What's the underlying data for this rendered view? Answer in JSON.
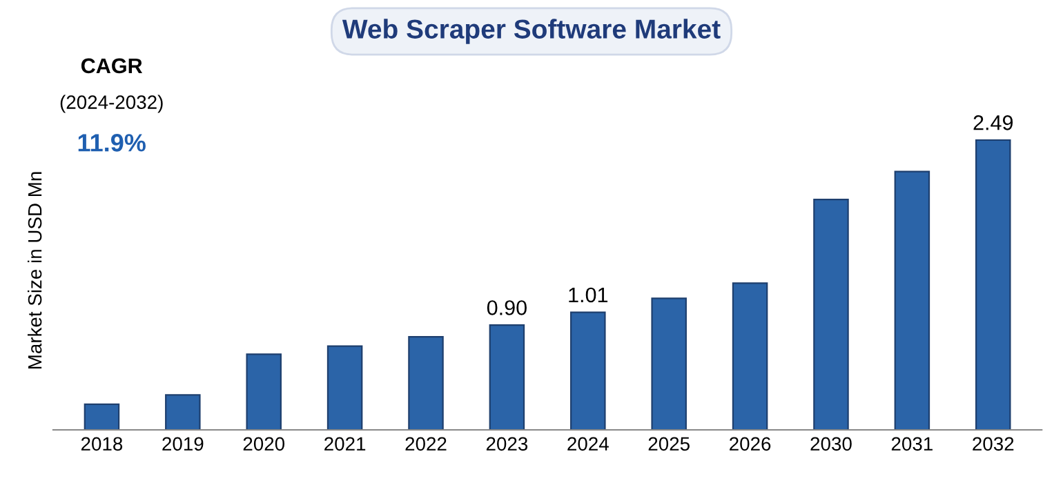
{
  "chart_data": {
    "type": "bar",
    "title": "Web Scraper Software Market",
    "ylabel": "Market Size in USD Mn",
    "categories": [
      "2018",
      "2019",
      "2020",
      "2021",
      "2022",
      "2023",
      "2024",
      "2025",
      "2026",
      "2030",
      "2031",
      "2032"
    ],
    "values": [
      0.22,
      0.3,
      0.65,
      0.72,
      0.8,
      0.9,
      1.01,
      1.13,
      1.26,
      1.98,
      2.22,
      2.49
    ],
    "value_labels": [
      null,
      null,
      null,
      null,
      null,
      "0.90",
      "1.01",
      null,
      null,
      null,
      null,
      "2.49"
    ],
    "color": "#2b64a8",
    "grid": false,
    "legend": false,
    "annotations": [
      "CAGR",
      "(2024-2032)",
      "11.9%"
    ]
  }
}
